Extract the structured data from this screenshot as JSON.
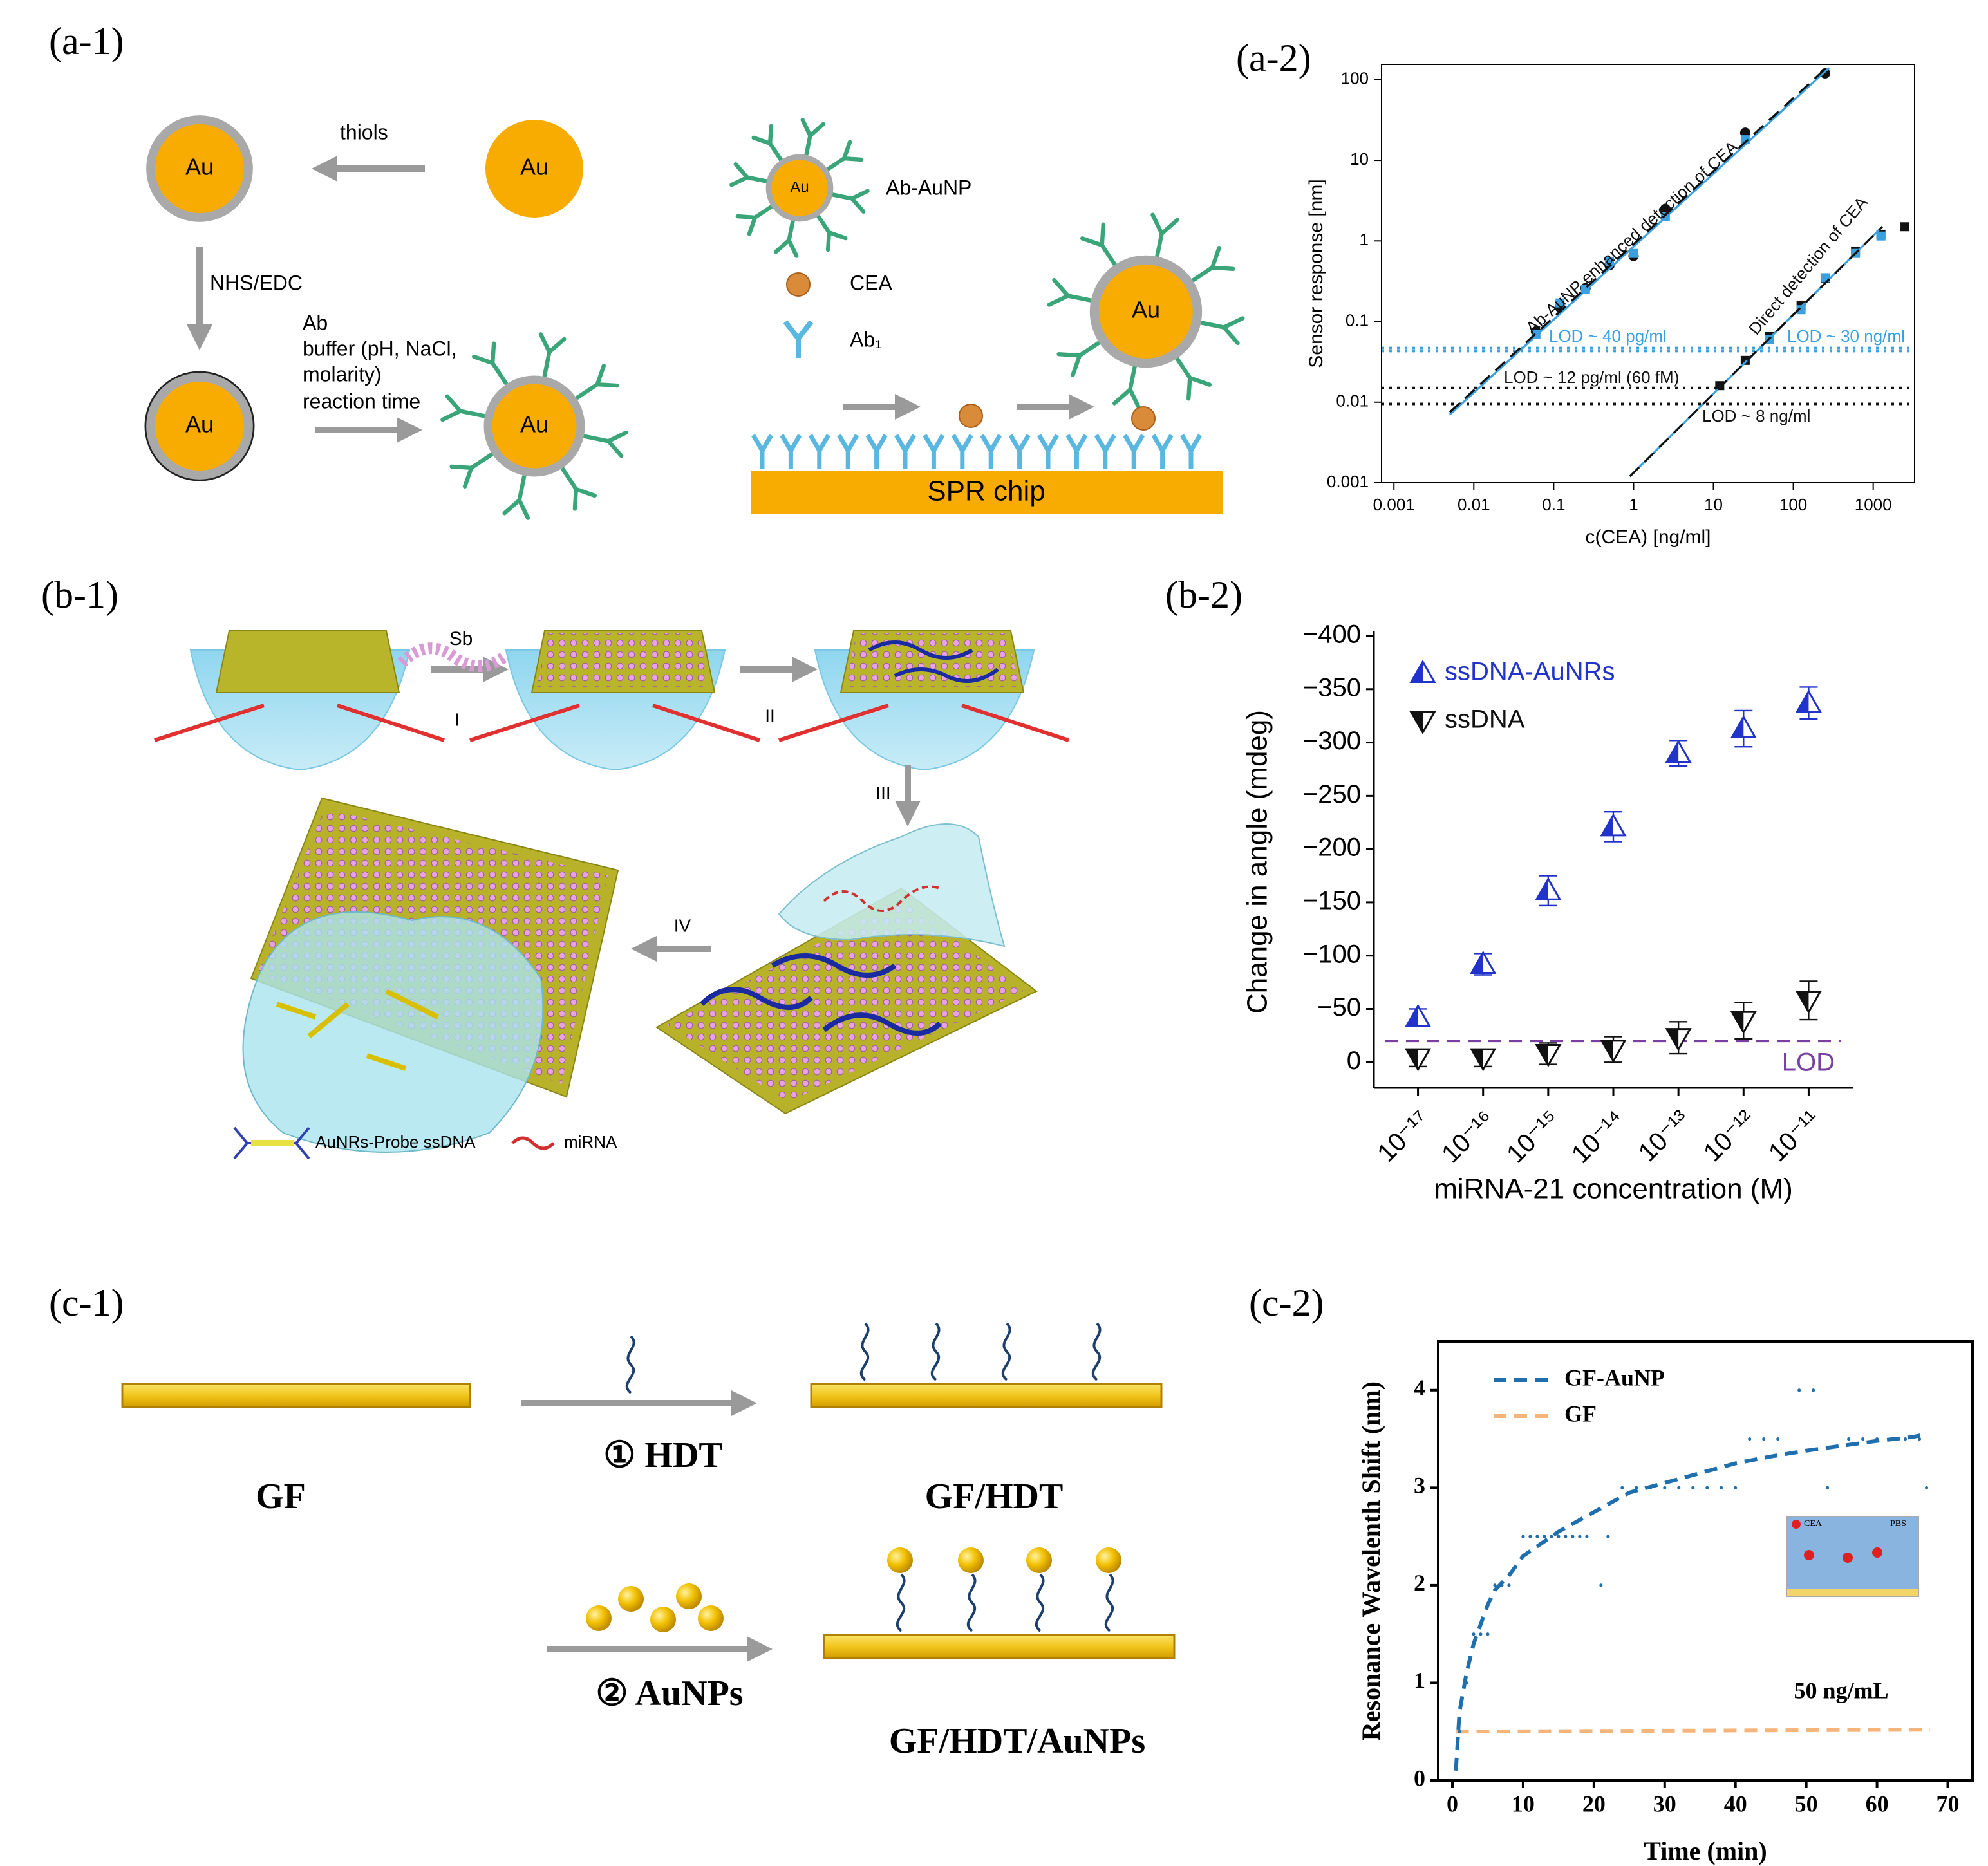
{
  "labels": [
    "(a-1)",
    "(a-2)",
    "(b-1)",
    "(b-2)",
    "(c-1)",
    "(c-2)"
  ],
  "a1": {
    "au": "Au",
    "thiols": "thiols",
    "nhs": "NHS/EDC",
    "conditions": [
      "Ab",
      "buffer (pH, NaCl,",
      "molarity)",
      "reaction time"
    ],
    "legend": [
      "Ab-AuNP",
      "CEA",
      "Ab₁"
    ],
    "chip": "SPR chip"
  },
  "b1": {
    "sb": "Sb",
    "steps": [
      "I",
      "II",
      "III",
      "IV"
    ],
    "legend": [
      "AuNRs-Probe ssDNA",
      "miRNA"
    ]
  },
  "c1": {
    "steps": [
      "① HDT",
      "② AuNPs"
    ],
    "products": [
      "GF",
      "GF/HDT",
      "GF/HDT/AuNPs"
    ]
  },
  "chart_data": [
    {
      "type": "scatter",
      "xlabel": "c(CEA) [ng/ml]",
      "ylabel": "Sensor response [nm]",
      "xlog": true,
      "ylog": true,
      "xlim": [
        0.0007,
        3300
      ],
      "ylim": [
        0.001,
        155
      ],
      "xticks": [
        0.001,
        0.01,
        0.1,
        1,
        10,
        100,
        1000
      ],
      "yticks": [
        0.001,
        0.01,
        0.1,
        1,
        10,
        100
      ],
      "frame": "box",
      "series": [
        {
          "marker": "circle",
          "color": "#111111",
          "x": [
            0.06,
            0.12,
            0.25,
            0.5,
            1,
            2.5,
            25,
            250
          ],
          "values": [
            0.075,
            0.15,
            0.26,
            0.5,
            0.65,
            2.5,
            22,
            120
          ]
        },
        {
          "marker": "square",
          "color": "#3aa0e0",
          "x": [
            0.06,
            0.12,
            0.25,
            0.5,
            1,
            2.5,
            25
          ],
          "values": [
            0.07,
            0.17,
            0.25,
            0.55,
            0.7,
            2,
            18
          ]
        },
        {
          "marker": "square",
          "color": "#111111",
          "x": [
            12,
            25,
            50,
            125,
            250,
            600,
            1250,
            2500
          ],
          "values": [
            0.016,
            0.033,
            0.065,
            0.16,
            0.34,
            0.75,
            1.2,
            1.5
          ]
        },
        {
          "marker": "square",
          "color": "#3aa0e0",
          "x": [
            50,
            125,
            250,
            600,
            1250
          ],
          "values": [
            0.06,
            0.14,
            0.35,
            0.7,
            1.15
          ]
        },
        {
          "marker": "line",
          "dash": "solid",
          "color": "#3aa0e0",
          "x": [
            0.005,
            280
          ],
          "values": [
            0.007,
            140
          ]
        },
        {
          "marker": "line",
          "dash": "dashed",
          "color": "#111111",
          "x": [
            0.005,
            280
          ],
          "values": [
            0.0075,
            150
          ]
        },
        {
          "marker": "line",
          "dash": "solid",
          "color": "#3aa0e0",
          "x": [
            0.9,
            1300
          ],
          "values": [
            0.0012,
            1.5
          ]
        },
        {
          "marker": "line",
          "dash": "dashed",
          "color": "#111111",
          "x": [
            0.9,
            1300
          ],
          "values": [
            0.0012,
            1.5
          ]
        }
      ],
      "hlines": [
        {
          "value": 0.047,
          "color": "#3aa0e0",
          "dash": "dotted"
        },
        {
          "value": 0.043,
          "color": "#3aa0e0",
          "dash": "dotted"
        },
        {
          "value": 0.015,
          "color": "#111111",
          "dash": "dotted"
        },
        {
          "value": 0.0095,
          "color": "#111111",
          "dash": "dotted"
        }
      ],
      "annotations": [
        {
          "text": "Ab-AuNP enhanced detection of CEA",
          "color": "#111111"
        },
        {
          "text": "Direct detection of CEA",
          "color": "#111111"
        },
        {
          "text": "LOD ~ 40 pg/ml",
          "color": "#3aa0e0"
        },
        {
          "text": "LOD ~ 12 pg/ml (60 fM)",
          "color": "#111111"
        },
        {
          "text": "LOD ~ 30 ng/ml",
          "color": "#3aa0e0"
        },
        {
          "text": "LOD ~ 8 ng/ml",
          "color": "#111111"
        }
      ]
    },
    {
      "type": "scatter",
      "xlabel": "miRNA-21 concentration (M)",
      "ylabel": "Change in angle (mdeg)",
      "categories": [
        "10⁻¹⁷",
        "10⁻¹⁶",
        "10⁻¹⁵",
        "10⁻¹⁴",
        "10⁻¹³",
        "10⁻¹²",
        "10⁻¹¹"
      ],
      "ylim": [
        24,
        -400
      ],
      "yticks": [
        {
          "value": -400,
          "label": "−400"
        },
        {
          "value": -350,
          "label": "−350"
        },
        {
          "value": -300,
          "label": "−300"
        },
        {
          "value": -250,
          "label": "−250"
        },
        {
          "value": -200,
          "label": "−200"
        },
        {
          "value": -150,
          "label": "−150"
        },
        {
          "value": -100,
          "label": "−100"
        },
        {
          "value": -50,
          "label": "−50"
        },
        0
      ],
      "frame": "axes",
      "legend_position": "upper left",
      "series": [
        {
          "name": "ssDNA-AuNRs",
          "marker": "triangle-up",
          "color": "#2233cc",
          "values": [
            -42,
            -92,
            -161,
            -221,
            -290,
            -313,
            -337
          ],
          "errors": [
            8,
            10,
            14,
            14,
            12,
            17,
            15
          ]
        },
        {
          "name": "ssDNA",
          "marker": "triangle-down",
          "color": "#111111",
          "values": [
            -4,
            -4,
            -8,
            -12,
            -23,
            -39,
            -58
          ],
          "errors": [
            8,
            8,
            10,
            12,
            15,
            17,
            18
          ]
        }
      ],
      "hlines": [
        {
          "value": -20,
          "color": "#7a3fa0",
          "dash": "dashed",
          "label": "LOD"
        }
      ]
    },
    {
      "type": "line",
      "xlabel": "Time (min)",
      "ylabel": "Resonance Wavelenth Shift (nm)",
      "xlim": [
        -2,
        73.5
      ],
      "ylim": [
        0,
        4.5
      ],
      "xticks": [
        0,
        10,
        20,
        30,
        40,
        50,
        60,
        70
      ],
      "yticks": [
        0,
        1,
        2,
        3,
        4
      ],
      "frame": "box",
      "legend_position": "upper left",
      "series": [
        {
          "name": "GF-AuNP",
          "color": "#1f6fae",
          "dash": "dashed",
          "x": [
            0.5,
            1,
            2,
            3,
            4,
            5,
            6,
            8,
            10,
            12,
            15,
            20,
            25,
            30,
            35,
            40,
            45,
            50,
            55,
            60,
            65,
            67
          ],
          "values": [
            0.1,
            0.7,
            1.1,
            1.4,
            1.6,
            1.8,
            1.95,
            2.1,
            2.3,
            2.4,
            2.55,
            2.75,
            2.95,
            3.05,
            3.15,
            3.25,
            3.32,
            3.38,
            3.43,
            3.48,
            3.52,
            3.55
          ]
        },
        {
          "name": "GF",
          "color": "#f5b57a",
          "dash": "dashed",
          "x": [
            0.5,
            67.5
          ],
          "values": [
            0.5,
            0.52
          ]
        },
        {
          "marker": "dot",
          "color": "#1f6fae",
          "x": [
            1,
            2,
            3,
            4,
            5,
            6,
            7,
            8,
            10,
            11,
            12,
            13,
            14,
            15,
            16,
            17,
            18,
            19,
            21,
            22,
            24,
            26,
            28,
            30,
            32,
            34,
            36,
            38,
            40,
            42,
            44,
            46,
            49,
            51,
            53,
            56,
            58,
            60,
            62,
            64,
            66,
            67
          ],
          "values": [
            0.5,
            1,
            1.5,
            1.5,
            1.5,
            2,
            2,
            2,
            2.5,
            2.5,
            2.5,
            2.5,
            2.5,
            2.5,
            2.5,
            2.5,
            2.5,
            2.5,
            2,
            2.5,
            3,
            3,
            3,
            3,
            3,
            3,
            3,
            3,
            3,
            3.5,
            3.5,
            3.5,
            4,
            4,
            3,
            3.5,
            3.5,
            3.5,
            3.5,
            3.5,
            3.5,
            3
          ]
        }
      ],
      "annotations": [
        {
          "text": "50 ng/mL",
          "color": "#000000"
        }
      ],
      "inset": [
        "CEA",
        "PBS"
      ]
    }
  ]
}
